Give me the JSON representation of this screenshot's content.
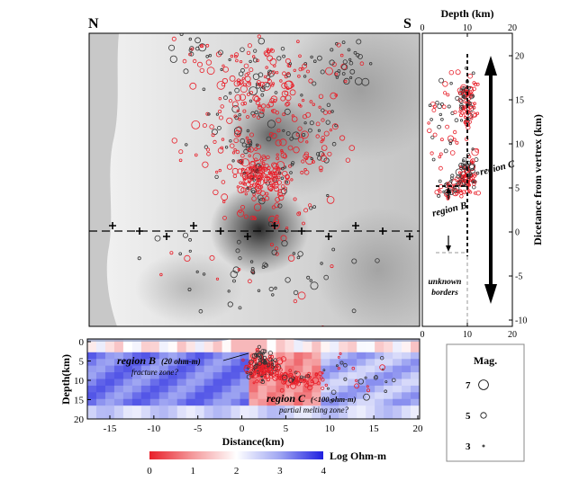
{
  "map": {
    "north_label": "N",
    "south_label": "S",
    "station_count": 12
  },
  "depth_panel": {
    "top_title": "Depth (km)",
    "top_ticks": [
      "0",
      "10",
      "20"
    ],
    "bottom_ticks": [
      "0",
      "10",
      "20"
    ],
    "right_axis_label": "Dicetance from vertrex (km)",
    "right_ticks": [
      "20",
      "15",
      "10",
      "5",
      "0",
      "-5",
      "-10"
    ],
    "region_c_label": "region C",
    "region_b_label": "region B",
    "unknown_borders_line1": "unknown",
    "unknown_borders_line2": "borders"
  },
  "section": {
    "ylabel": "Depth(km)",
    "xlabel": "Distance(km)",
    "y_ticks": [
      "0",
      "5",
      "10",
      "15",
      "20"
    ],
    "x_ticks": [
      "-15",
      "-10",
      "-5",
      "0",
      "5",
      "10",
      "15",
      "20"
    ],
    "region_b_title": "region B",
    "region_b_value": "(20 ohm-m)",
    "region_b_note": "fracture zone?",
    "region_c_title": "region C",
    "region_c_value": "(<100 ohm-m)",
    "region_c_note": "partial melting zone?"
  },
  "colorbar": {
    "ticks": [
      "0",
      "1",
      "2",
      "3",
      "4"
    ],
    "label": "Log Ohm-m",
    "colors": [
      "#e8202a",
      "#f49a9c",
      "#ffffff",
      "#9fa6f2",
      "#2020e0"
    ]
  },
  "magnitude_legend": {
    "title": "Mag.",
    "items": [
      {
        "label": "7",
        "magnitude": 7
      },
      {
        "label": "5",
        "magnitude": 5
      },
      {
        "label": "3",
        "magnitude": 3
      }
    ]
  },
  "colors": {
    "event_red": "#e8202a",
    "event_black": "#333333",
    "ocean": "#c8c8c8"
  }
}
